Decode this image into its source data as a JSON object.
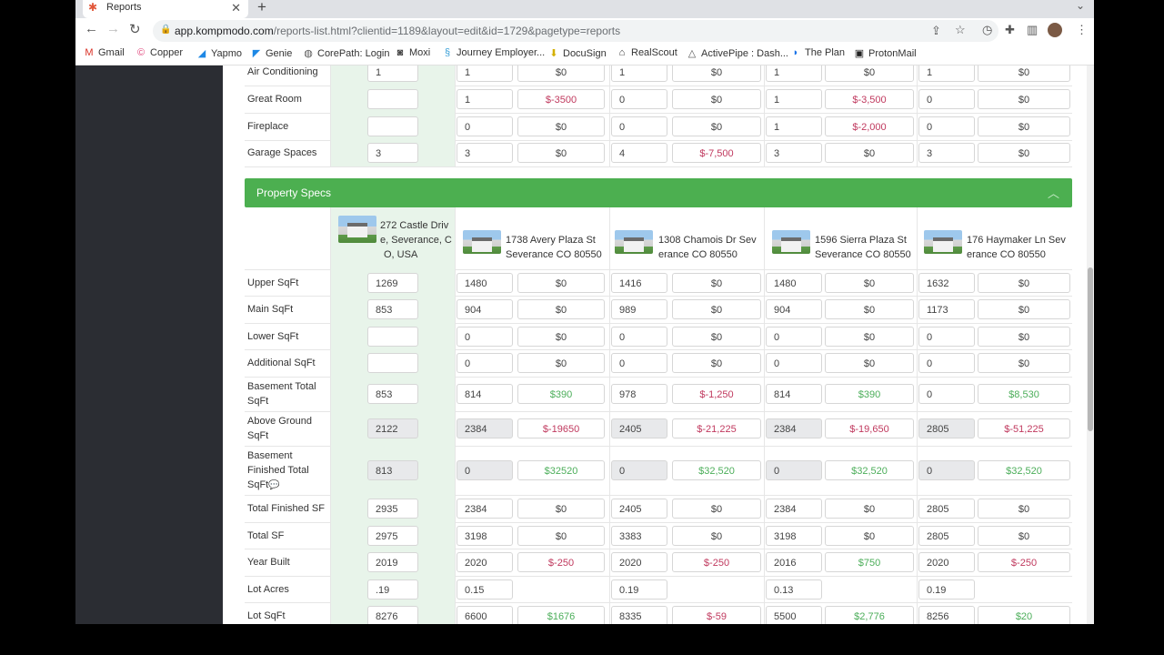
{
  "browser": {
    "tab_title": "Reports",
    "url_host": "app.kompmodo.com",
    "url_rest": "/reports-list.html?clientid=1189&layout=edit&id=1729&pagetype=reports"
  },
  "bookmarks": [
    "Gmail",
    "Copper",
    "Yapmo",
    "Genie",
    "CorePath: Login",
    "Moxi",
    "Journey Employer...",
    "DocuSign",
    "RealScout",
    "ActivePipe : Dash...",
    "The Plan",
    "ProtonMail"
  ],
  "top_rows": [
    {
      "label": "Air Conditioning",
      "subject": "1",
      "comps": [
        {
          "v": "1",
          "a": "$0",
          "s": "zero"
        },
        {
          "v": "1",
          "a": "$0",
          "s": "zero"
        },
        {
          "v": "1",
          "a": "$0",
          "s": "zero"
        },
        {
          "v": "1",
          "a": "$0",
          "s": "zero"
        }
      ]
    },
    {
      "label": "Great Room",
      "subject": "",
      "comps": [
        {
          "v": "1",
          "a": "$-3500",
          "s": "neg"
        },
        {
          "v": "0",
          "a": "$0",
          "s": "zero"
        },
        {
          "v": "1",
          "a": "$-3,500",
          "s": "neg"
        },
        {
          "v": "0",
          "a": "$0",
          "s": "zero"
        }
      ]
    },
    {
      "label": "Fireplace",
      "subject": "",
      "comps": [
        {
          "v": "0",
          "a": "$0",
          "s": "zero"
        },
        {
          "v": "0",
          "a": "$0",
          "s": "zero"
        },
        {
          "v": "1",
          "a": "$-2,000",
          "s": "neg"
        },
        {
          "v": "0",
          "a": "$0",
          "s": "zero"
        }
      ]
    },
    {
      "label": "Garage Spaces",
      "subject": "3",
      "comps": [
        {
          "v": "3",
          "a": "$0",
          "s": "zero"
        },
        {
          "v": "4",
          "a": "$-7,500",
          "s": "neg"
        },
        {
          "v": "3",
          "a": "$0",
          "s": "zero"
        },
        {
          "v": "3",
          "a": "$0",
          "s": "zero"
        }
      ]
    }
  ],
  "specs": {
    "title": "Property Specs",
    "subject_address": [
      "272 Castle Driv",
      "e, Severance, C",
      "O, USA"
    ],
    "comp_addresses": [
      [
        "1738 Avery Plaza St",
        "Severance CO 80550"
      ],
      [
        "1308 Chamois Dr Sev",
        "erance CO 80550"
      ],
      [
        "1596 Sierra Plaza St",
        "Severance CO 80550"
      ],
      [
        "176 Haymaker Ln Sev",
        "erance CO 80550"
      ]
    ],
    "rows": [
      {
        "label": [
          "Upper SqFt"
        ],
        "subject": "1269",
        "comps": [
          {
            "v": "1480",
            "a": "$0",
            "s": "zero"
          },
          {
            "v": "1416",
            "a": "$0",
            "s": "zero"
          },
          {
            "v": "1480",
            "a": "$0",
            "s": "zero"
          },
          {
            "v": "1632",
            "a": "$0",
            "s": "zero"
          }
        ]
      },
      {
        "label": [
          "Main SqFt"
        ],
        "subject": "853",
        "comps": [
          {
            "v": "904",
            "a": "$0",
            "s": "zero"
          },
          {
            "v": "989",
            "a": "$0",
            "s": "zero"
          },
          {
            "v": "904",
            "a": "$0",
            "s": "zero"
          },
          {
            "v": "1173",
            "a": "$0",
            "s": "zero"
          }
        ]
      },
      {
        "label": [
          "Lower SqFt"
        ],
        "subject": "",
        "comps": [
          {
            "v": "0",
            "a": "$0",
            "s": "zero"
          },
          {
            "v": "0",
            "a": "$0",
            "s": "zero"
          },
          {
            "v": "0",
            "a": "$0",
            "s": "zero"
          },
          {
            "v": "0",
            "a": "$0",
            "s": "zero"
          }
        ]
      },
      {
        "label": [
          "Additional SqFt"
        ],
        "subject": "",
        "comps": [
          {
            "v": "0",
            "a": "$0",
            "s": "zero"
          },
          {
            "v": "0",
            "a": "$0",
            "s": "zero"
          },
          {
            "v": "0",
            "a": "$0",
            "s": "zero"
          },
          {
            "v": "0",
            "a": "$0",
            "s": "zero"
          }
        ]
      },
      {
        "label": [
          "Basement Total",
          "SqFt"
        ],
        "subject": "853",
        "comps": [
          {
            "v": "814",
            "a": "$390",
            "s": "pos"
          },
          {
            "v": "978",
            "a": "$-1,250",
            "s": "neg"
          },
          {
            "v": "814",
            "a": "$390",
            "s": "pos"
          },
          {
            "v": "0",
            "a": "$8,530",
            "s": "pos"
          }
        ]
      },
      {
        "label": [
          "Above Ground",
          "SqFt"
        ],
        "subject": "2122",
        "gray": true,
        "comps": [
          {
            "v": "2384",
            "a": "$-19650",
            "s": "neg"
          },
          {
            "v": "2405",
            "a": "$-21,225",
            "s": "neg"
          },
          {
            "v": "2384",
            "a": "$-19,650",
            "s": "neg"
          },
          {
            "v": "2805",
            "a": "$-51,225",
            "s": "neg"
          }
        ]
      },
      {
        "label": [
          "Basement",
          "Finished Total",
          "SqFt"
        ],
        "subject": "813",
        "gray": true,
        "comps": [
          {
            "v": "0",
            "a": "$32520",
            "s": "pos"
          },
          {
            "v": "0",
            "a": "$32,520",
            "s": "pos"
          },
          {
            "v": "0",
            "a": "$32,520",
            "s": "pos"
          },
          {
            "v": "0",
            "a": "$32,520",
            "s": "pos"
          }
        ]
      },
      {
        "label": [
          "Total Finished SF"
        ],
        "subject": "2935",
        "comps": [
          {
            "v": "2384",
            "a": "$0",
            "s": "zero"
          },
          {
            "v": "2405",
            "a": "$0",
            "s": "zero"
          },
          {
            "v": "2384",
            "a": "$0",
            "s": "zero"
          },
          {
            "v": "2805",
            "a": "$0",
            "s": "zero"
          }
        ]
      },
      {
        "label": [
          "Total SF"
        ],
        "subject": "2975",
        "comps": [
          {
            "v": "3198",
            "a": "$0",
            "s": "zero"
          },
          {
            "v": "3383",
            "a": "$0",
            "s": "zero"
          },
          {
            "v": "3198",
            "a": "$0",
            "s": "zero"
          },
          {
            "v": "2805",
            "a": "$0",
            "s": "zero"
          }
        ]
      },
      {
        "label": [
          "Year Built"
        ],
        "subject": "2019",
        "comps": [
          {
            "v": "2020",
            "a": "$-250",
            "s": "neg"
          },
          {
            "v": "2020",
            "a": "$-250",
            "s": "neg"
          },
          {
            "v": "2016",
            "a": "$750",
            "s": "pos"
          },
          {
            "v": "2020",
            "a": "$-250",
            "s": "neg"
          }
        ]
      },
      {
        "label": [
          "Lot Acres"
        ],
        "subject": ".19",
        "comps": [
          {
            "v": "0.15",
            "a": "",
            "s": "zero"
          },
          {
            "v": "0.19",
            "a": "",
            "s": "zero"
          },
          {
            "v": "0.13",
            "a": "",
            "s": "zero"
          },
          {
            "v": "0.19",
            "a": "",
            "s": "zero"
          }
        ]
      },
      {
        "label": [
          "Lot SqFt"
        ],
        "subject": "8276",
        "comps": [
          {
            "v": "6600",
            "a": "$1676",
            "s": "pos"
          },
          {
            "v": "8335",
            "a": "$-59",
            "s": "neg"
          },
          {
            "v": "5500",
            "a": "$2,776",
            "s": "pos"
          },
          {
            "v": "8256",
            "a": "$20",
            "s": "pos"
          }
        ]
      }
    ]
  }
}
